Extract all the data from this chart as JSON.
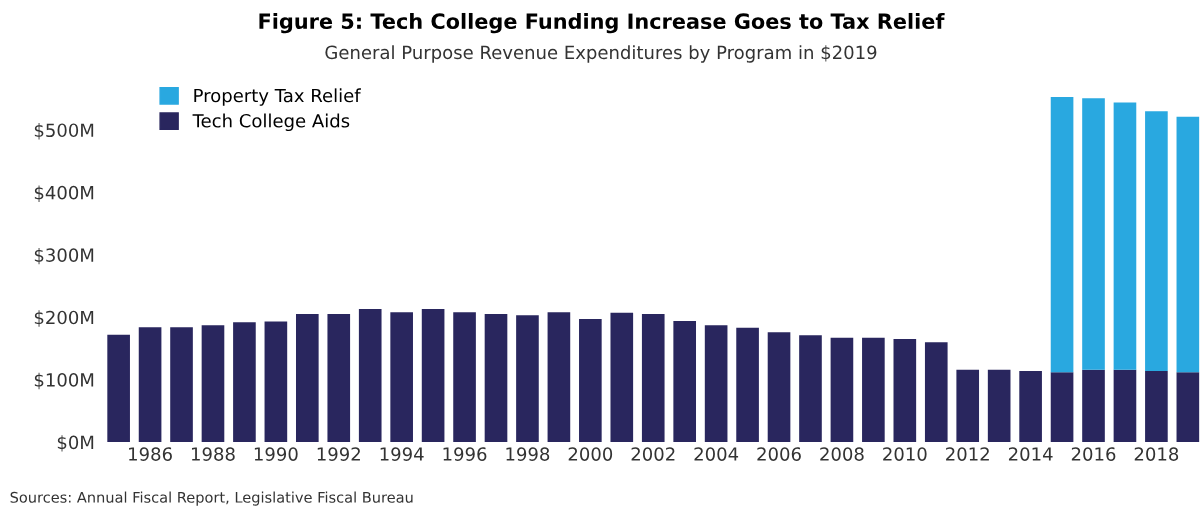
{
  "chart_data": {
    "type": "bar",
    "title": "Figure 5: Tech College Funding Increase Goes to Tax Relief",
    "subtitle": "General Purpose Revenue Expenditures by Program in $2019",
    "categories": [
      null,
      "1986",
      null,
      "1988",
      null,
      "1990",
      null,
      "1992",
      null,
      "1994",
      null,
      "1996",
      null,
      "1998",
      null,
      "2000",
      null,
      "2002",
      null,
      "2004",
      null,
      "2006",
      null,
      "2008",
      null,
      "2010",
      null,
      "2012",
      null,
      "2014",
      null,
      "2016",
      null,
      "2018",
      null
    ],
    "stacked": true,
    "series": [
      {
        "name": "Tech College Aids",
        "color": "#29265e",
        "values": [
          172,
          184,
          184,
          187,
          192,
          193,
          205,
          205,
          213,
          208,
          213,
          208,
          205,
          203,
          208,
          197,
          207,
          205,
          194,
          187,
          183,
          176,
          171,
          167,
          167,
          165,
          160,
          116,
          116,
          114,
          112,
          116,
          116,
          114,
          112
        ]
      },
      {
        "name": "Property Tax Relief",
        "color": "#29a8e0",
        "values": [
          null,
          null,
          null,
          null,
          null,
          null,
          null,
          null,
          null,
          null,
          null,
          null,
          null,
          null,
          null,
          null,
          null,
          null,
          null,
          null,
          null,
          null,
          null,
          null,
          null,
          null,
          null,
          null,
          null,
          null,
          441,
          435,
          428,
          416,
          409
        ]
      }
    ],
    "ylim": [
      0,
      560
    ],
    "yticks": [
      {
        "value": 0,
        "label": "$0M"
      },
      {
        "value": 100,
        "label": "$100M"
      },
      {
        "value": 200,
        "label": "$200M"
      },
      {
        "value": 300,
        "label": "$300M"
      },
      {
        "value": 400,
        "label": "$400M"
      },
      {
        "value": 500,
        "label": "$500M"
      }
    ],
    "legend": "top left",
    "annotations": [
      "Sources: Annual Fiscal Report, Legislative Fiscal Bureau"
    ]
  }
}
